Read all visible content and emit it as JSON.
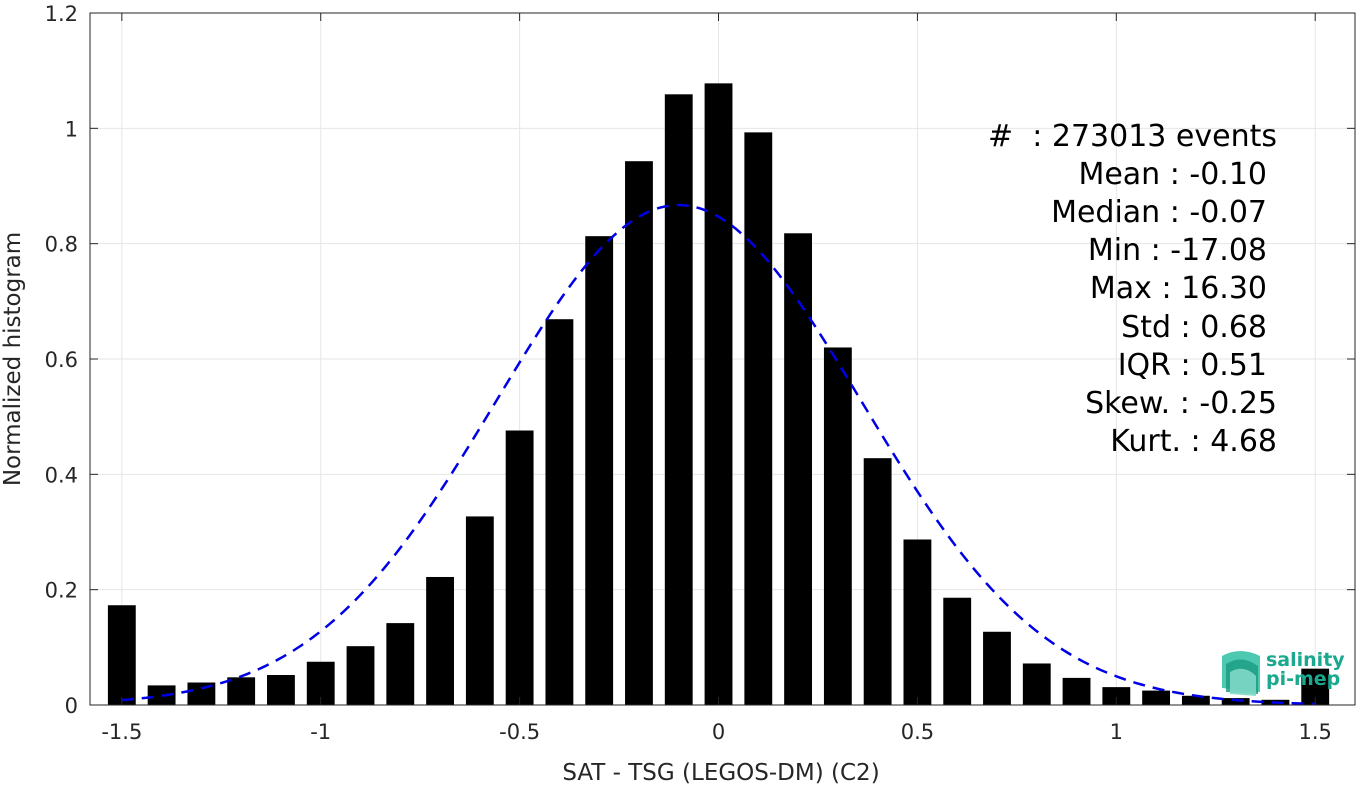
{
  "chart_data": {
    "type": "bar",
    "xlabel": "SAT - TSG (LEGOS-DM) (C2)",
    "ylabel": "Normalized histogram",
    "xlim": [
      -1.58,
      1.6
    ],
    "ylim": [
      0,
      1.2
    ],
    "xticks": [
      "-1.5",
      "-1",
      "-0.5",
      "0",
      "0.5",
      "1",
      "1.5"
    ],
    "xtick_values": [
      -1.5,
      -1,
      -0.5,
      0,
      0.5,
      1,
      1.5
    ],
    "yticks": [
      "0",
      "0.2",
      "0.4",
      "0.6",
      "0.8",
      "1",
      "1.2"
    ],
    "ytick_values": [
      0,
      0.2,
      0.4,
      0.6,
      0.8,
      1,
      1.2
    ],
    "grid": true,
    "x": [
      -1.5,
      -1.4,
      -1.3,
      -1.2,
      -1.1,
      -1.0,
      -0.9,
      -0.8,
      -0.7,
      -0.6,
      -0.5,
      -0.4,
      -0.3,
      -0.2,
      -0.1,
      0.0,
      0.1,
      0.2,
      0.3,
      0.4,
      0.5,
      0.6,
      0.7,
      0.8,
      0.9,
      1.0,
      1.1,
      1.2,
      1.3,
      1.4,
      1.5
    ],
    "values": [
      0.173,
      0.034,
      0.039,
      0.048,
      0.052,
      0.075,
      0.102,
      0.142,
      0.222,
      0.327,
      0.476,
      0.669,
      0.813,
      0.943,
      1.059,
      1.078,
      0.993,
      0.818,
      0.62,
      0.428,
      0.287,
      0.186,
      0.127,
      0.072,
      0.047,
      0.031,
      0.025,
      0.016,
      0.012,
      0.009,
      0.063
    ],
    "bar_color": "#000000",
    "fit_curve": {
      "style": "dashed",
      "color": "#0000e6",
      "mean": -0.1,
      "std": 0.46,
      "peak": 0.867,
      "x_range": [
        -1.5,
        1.5
      ]
    },
    "stats": [
      "#  : 273013 events",
      "Mean : -0.10",
      "Median : -0.07",
      "Min : -17.08",
      "Max : 16.30",
      "Std : 0.68",
      "IQR : 0.51",
      "Skew. : -0.25",
      "Kurt. : 4.68"
    ]
  },
  "logo": {
    "line1": "salinity",
    "line2": "pi-mep",
    "color": "#1aa98f"
  }
}
